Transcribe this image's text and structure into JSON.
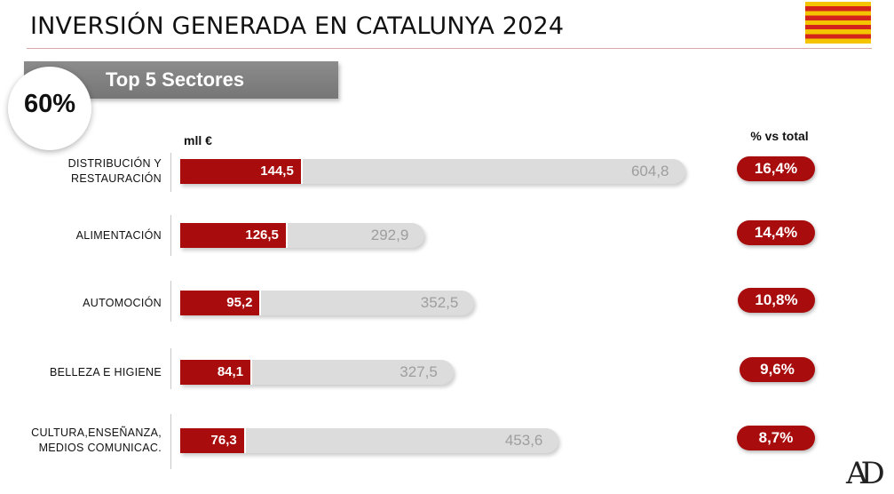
{
  "header": {
    "title": "INVERSIÓN GENERADA EN CATALUNYA 2024",
    "flag_colors": {
      "yellow": "#f5c400",
      "red": "#d4231a"
    }
  },
  "banner": {
    "label": "Top 5 Sectores"
  },
  "badge": {
    "value": "60%"
  },
  "logo": {
    "text": "AD"
  },
  "colors": {
    "accent": "#a80c0c",
    "total_bar": "#dcdcdc",
    "total_text": "#9e9e9e"
  },
  "chart_data": {
    "type": "bar",
    "orientation": "horizontal",
    "unit_label": "mll €",
    "pct_header": "% vs total",
    "categories": [
      [
        "DISTRIBUCIÓN Y",
        "RESTAURACIÓN"
      ],
      [
        "ALIMENTACIÓN"
      ],
      [
        "AUTOMOCIÓN"
      ],
      [
        "BELLEZA E HIGIENE"
      ],
      [
        "CULTURA,ENSEÑANZA,",
        "MEDIOS COMUNICAC."
      ]
    ],
    "top5_values": [
      144.5,
      126.5,
      95.2,
      84.1,
      76.3
    ],
    "top5_labels": [
      "144,5",
      "126,5",
      "95,2",
      "84,1",
      "76,3"
    ],
    "total_values": [
      604.8,
      292.9,
      352.5,
      327.5,
      453.6
    ],
    "total_labels": [
      "604,8",
      "292,9",
      "352,5",
      "327,5",
      "453,6"
    ],
    "pct_labels": [
      "16,4%",
      "14,4%",
      "10,8%",
      "9,6%",
      "8,7%"
    ],
    "pct_values": [
      16.4,
      14.4,
      10.8,
      9.6,
      8.7
    ]
  }
}
